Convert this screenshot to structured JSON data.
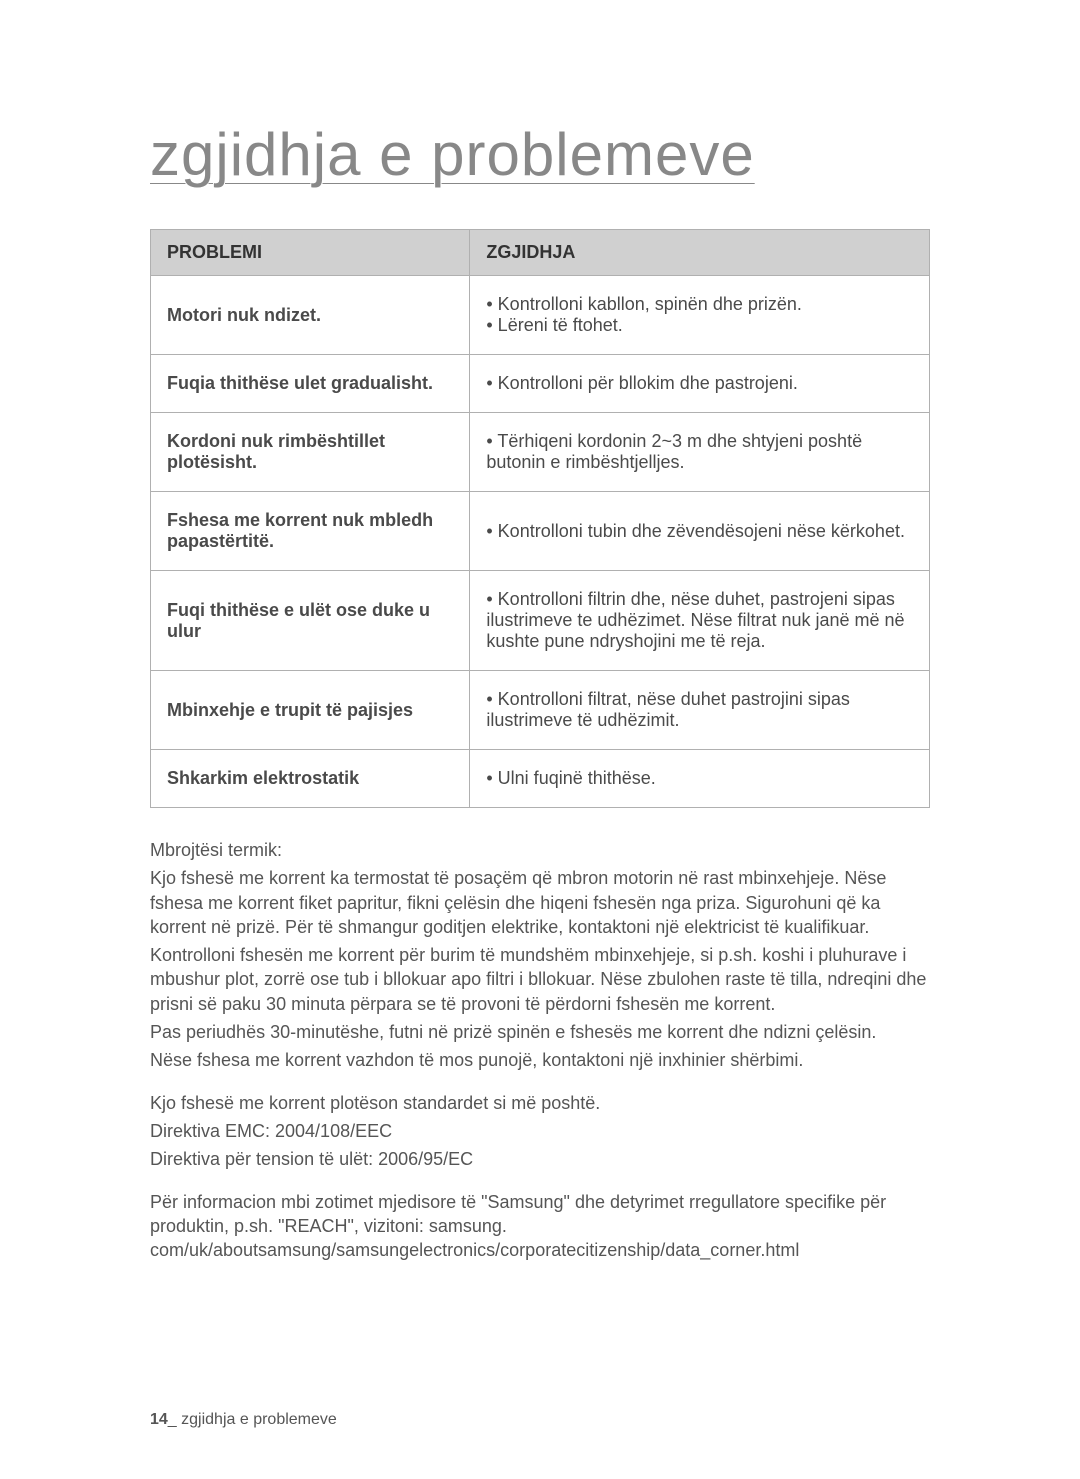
{
  "title": "zgjidhja e problemeve",
  "table": {
    "headers": {
      "problem": "PROBLEMI",
      "solution": "ZGJIDHJA"
    },
    "rows": [
      {
        "problem": "Motori nuk ndizet.",
        "solution": "• Kontrolloni kabllon, spinën dhe prizën.\n• Lëreni të ftohet."
      },
      {
        "problem": "Fuqia thithëse ulet gradualisht.",
        "solution": "• Kontrolloni për bllokim dhe pastrojeni."
      },
      {
        "problem": "Kordoni nuk rimbështillet plotësisht.",
        "solution": "• Tërhiqeni kordonin 2~3 m dhe shtyjeni poshtë butonin e rimbështjelljes."
      },
      {
        "problem": "Fshesa me korrent nuk mbledh papastërtitë.",
        "solution": "• Kontrolloni tubin dhe zëvendësojeni nëse kërkohet."
      },
      {
        "problem": "Fuqi thithëse e ulët ose duke u ulur",
        "solution": "• Kontrolloni filtrin dhe, nëse duhet, pastrojeni sipas ilustrimeve te udhëzimet. Nëse filtrat nuk janë më në kushte pune ndryshojini me të reja."
      },
      {
        "problem": "Mbinxehje e trupit të pajisjes",
        "solution": "• Kontrolloni filtrat, nëse duhet pastrojini sipas ilustrimeve të udhëzimit."
      },
      {
        "problem": "Shkarkim elektrostatik",
        "solution": "• Ulni fuqinë thithëse."
      }
    ]
  },
  "body": {
    "p1": "Mbrojtësi termik:",
    "p2": "Kjo fshesë me korrent ka termostat të posaçëm që mbron motorin në rast mbinxehjeje. Nëse fshesa me korrent fiket papritur, fikni çelësin dhe hiqeni fshesën nga priza. Sigurohuni që ka korrent në prizë. Për të shmangur goditjen elektrike, kontaktoni një elektricist të kualifikuar.",
    "p3": "Kontrolloni fshesën me korrent për burim të mundshëm mbinxehjeje, si p.sh. koshi i pluhurave i mbushur plot, zorrë ose tub i bllokuar apo filtri i bllokuar. Nëse zbulohen raste të tilla, ndreqini dhe prisni së paku 30 minuta përpara se të provoni të përdorni fshesën me korrent.",
    "p4": "Pas periudhës 30-minutëshe, futni në prizë spinën e fshesës me korrent dhe ndizni çelësin.",
    "p5": "Nëse fshesa me korrent vazhdon të mos punojë, kontaktoni një inxhinier shërbimi.",
    "p6": "Kjo fshesë me korrent plotëson standardet si më poshtë.",
    "p7": "Direktiva EMC: 2004/108/EEC",
    "p8": "Direktiva për tension të ulët: 2006/95/EC",
    "p9": "Për informacion mbi zotimet mjedisore të \"Samsung\" dhe detyrimet rregullatore specifike për produktin, p.sh. \"REACH\", vizitoni: samsung. com/uk/aboutsamsung/samsungelectronics/corporatecitizenship/data_corner.html"
  },
  "footer": {
    "pageNumber": "14",
    "label": "_ zgjidhja e problemeve"
  }
}
